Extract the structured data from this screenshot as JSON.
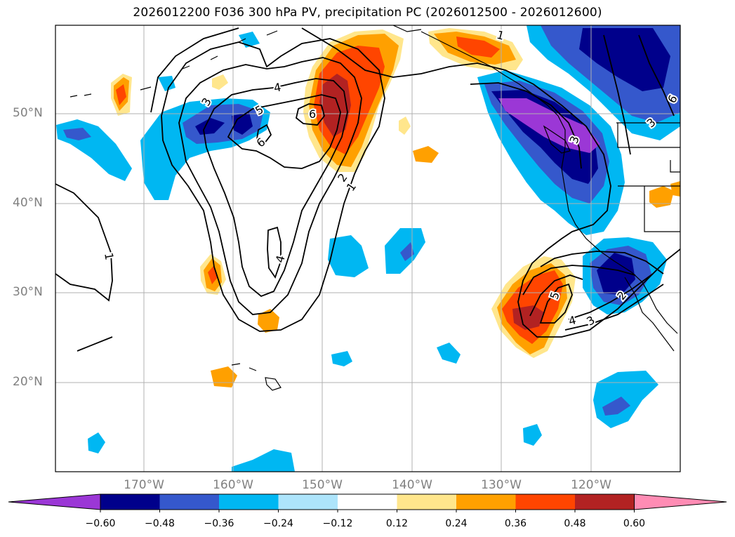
{
  "title": "2026012200 F036 300 hPa PV, precipitation PC (2026012500 - 2026012600)",
  "map": {
    "lat_ticks": [
      "50°N",
      "40°N",
      "30°N",
      "20°N"
    ],
    "lon_ticks": [
      "170°W",
      "160°W",
      "150°W",
      "140°W",
      "130°W",
      "120°W"
    ],
    "contour_labels": [
      "1",
      "1",
      "1",
      "2",
      "2",
      "3",
      "3",
      "3",
      "3",
      "4",
      "4",
      "4",
      "5",
      "5",
      "6",
      "6",
      "6"
    ]
  },
  "colorbar": {
    "ticks": [
      "−0.60",
      "−0.48",
      "−0.36",
      "−0.24",
      "−0.12",
      "0.12",
      "0.24",
      "0.36",
      "0.48",
      "0.60"
    ],
    "colors": [
      "#9b37d6",
      "#00008b",
      "#3558cc",
      "#00b7f2",
      "#ade4fb",
      "#ffffff",
      "#ffe68c",
      "#ffa000",
      "#ff4500",
      "#b22222",
      "#ff8cb4"
    ]
  }
}
